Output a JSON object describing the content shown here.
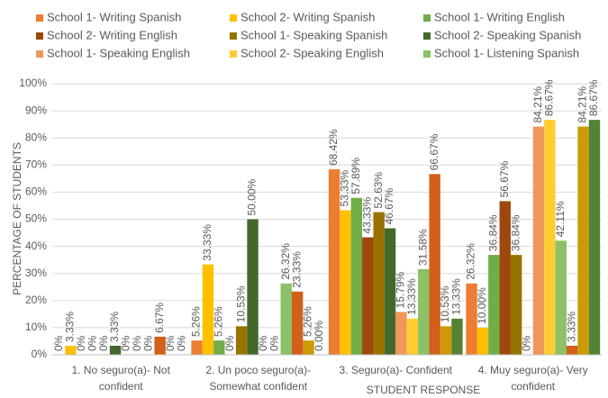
{
  "chart_data": {
    "type": "bar",
    "x_label": "STUDENT RESPONSE",
    "y_label": "PERCENTAGE OF STUDENTS",
    "categories": [
      "1. No seguro(a)- Not confident",
      "2. Un poco seguro(a)- Somewhat confident",
      "3. Seguro(a)- Confident",
      "4. Muy seguro(a)- Very confident"
    ],
    "ylim": [
      0,
      100
    ],
    "yticks": [
      {
        "value": 0,
        "label": "0%"
      },
      {
        "value": 10,
        "label": "10%"
      },
      {
        "value": 20,
        "label": "20%"
      },
      {
        "value": 30,
        "label": "30%"
      },
      {
        "value": 40,
        "label": "40%"
      },
      {
        "value": 50,
        "label": "50%"
      },
      {
        "value": 60,
        "label": "60%"
      },
      {
        "value": 70,
        "label": "70%"
      },
      {
        "value": 80,
        "label": "80%"
      },
      {
        "value": 90,
        "label": "90%"
      },
      {
        "value": 100,
        "label": "100%"
      }
    ],
    "grid": true,
    "legend": "top",
    "series": [
      {
        "name": "School 1- Writing Spanish",
        "color": "#ed7d31",
        "values": [
          0,
          5.26,
          68.42,
          26.32
        ],
        "value_labels": [
          "0%",
          "5.26%",
          "68.42%",
          "26.32%"
        ]
      },
      {
        "name": "School 2- Writing Spanish",
        "color": "#ffc000",
        "values": [
          3.33,
          33.33,
          53.33,
          10.0
        ],
        "value_labels": [
          "3.33%",
          "33.33%",
          "53.33%",
          "10.00%"
        ]
      },
      {
        "name": "School 1- Writing English",
        "color": "#70ad47",
        "values": [
          0,
          5.26,
          57.89,
          36.84
        ],
        "value_labels": [
          "0%",
          "5.26%",
          "57.89%",
          "36.84%"
        ]
      },
      {
        "name": "School 2- Writing English",
        "color": "#9e480e",
        "values": [
          0,
          0,
          43.33,
          56.67
        ],
        "value_labels": [
          "0%",
          "0%",
          "43.33%",
          "56.67%"
        ]
      },
      {
        "name": "School 1- Speaking Spanish",
        "color": "#997300",
        "values": [
          0,
          10.53,
          52.63,
          36.84
        ],
        "value_labels": [
          "0%",
          "10.53%",
          "52.63%",
          "36.84%"
        ]
      },
      {
        "name": "School 2- Speaking Spanish",
        "color": "#43682b",
        "values": [
          3.33,
          50.0,
          46.67,
          0
        ],
        "value_labels": [
          "3.33%",
          "50.00%",
          "46.67%",
          "0%"
        ]
      },
      {
        "name": "School 1- Speaking English",
        "color": "#f1975a",
        "values": [
          0,
          0,
          15.79,
          84.21
        ],
        "value_labels": [
          "0%",
          "0%",
          "15.79%",
          "84.21%"
        ]
      },
      {
        "name": "School 2- Speaking English",
        "color": "#ffcd33",
        "values": [
          0,
          0,
          13.33,
          86.67
        ],
        "value_labels": [
          "0%",
          "0%",
          "13.33%",
          "86.67%"
        ]
      },
      {
        "name": "School 1- Listening Spanish",
        "color": "#8cc168",
        "values": [
          0,
          26.32,
          31.58,
          42.11
        ],
        "value_labels": [
          "0%",
          "26.32%",
          "31.58%",
          "42.11%"
        ]
      },
      {
        "name": null,
        "color": "#d2601a",
        "values": [
          6.67,
          23.33,
          66.67,
          3.33
        ],
        "value_labels": [
          "6.67%",
          "23.33%",
          "66.67%",
          "3.33%"
        ]
      },
      {
        "name": null,
        "color": "#cc9a06",
        "values": [
          0,
          5.26,
          10.53,
          84.21
        ],
        "value_labels": [
          "0%",
          "5.26%",
          "10.53%",
          "84.21%"
        ]
      },
      {
        "name": null,
        "color": "#548235",
        "values": [
          0,
          0.0,
          13.33,
          86.67
        ],
        "value_labels": [
          "0%",
          "0.00%",
          "13.33%",
          "86.67%"
        ]
      }
    ]
  }
}
